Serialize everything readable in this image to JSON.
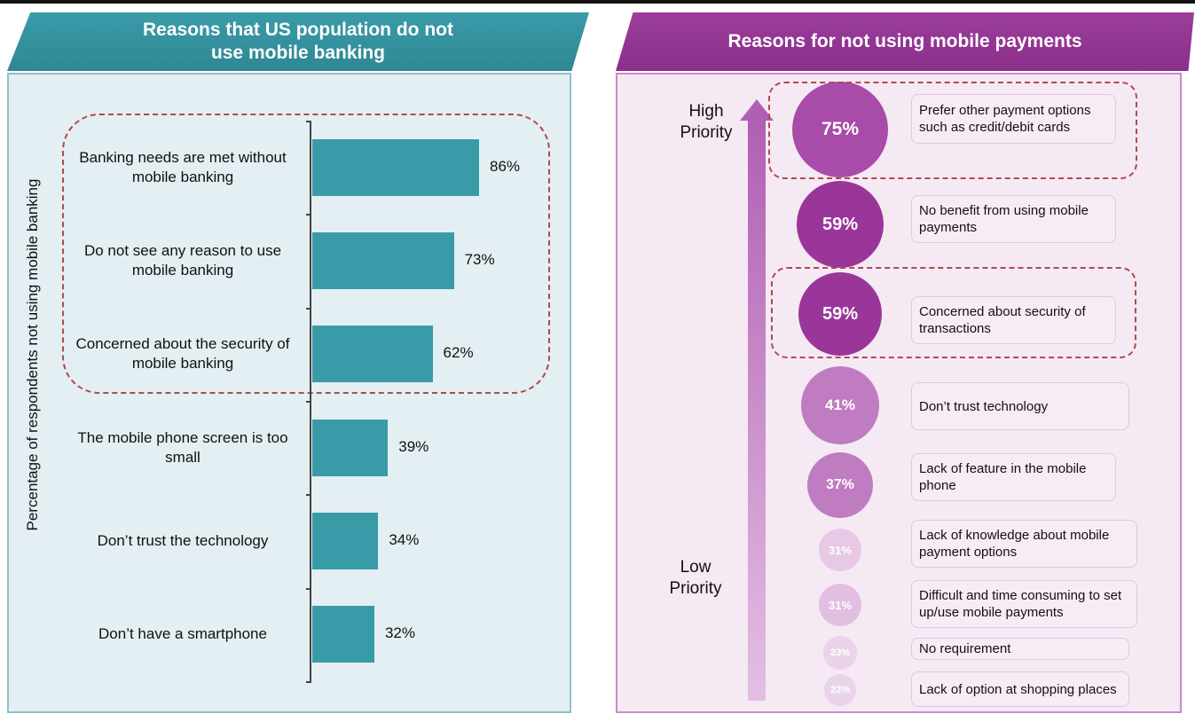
{
  "left": {
    "title": "Reasons that US population do not use mobile banking",
    "ylabel": "Percentage of respondents not using mobile banking"
  },
  "right": {
    "title": "Reasons for not using mobile payments",
    "high_priority": "High Priority",
    "low_priority": "Low Priority"
  },
  "chart_data": [
    {
      "type": "bar",
      "title": "Reasons that US population do not use mobile banking",
      "ylabel": "Percentage of respondents not using mobile banking",
      "categories": [
        "Banking needs are met without mobile banking",
        "Do not see any reason to use mobile banking",
        "Concerned about the security of mobile banking",
        "The mobile phone screen is too small",
        "Don’t trust the technology",
        "Don’t have a smartphone"
      ],
      "values": [
        86,
        73,
        62,
        39,
        34,
        32
      ],
      "value_labels": [
        "86%",
        "73%",
        "62%",
        "39%",
        "34%",
        "32%"
      ],
      "xlim": [
        0,
        100
      ],
      "highlighted_count": 3,
      "bar_color": "#3a9ba8"
    },
    {
      "type": "bubble",
      "title": "Reasons for not using mobile payments",
      "categories": [
        "Prefer other payment options such as credit/debit cards",
        "No benefit from using mobile payments",
        "Concerned about security of transactions",
        "Don’t trust technology",
        "Lack of feature in the mobile phone",
        "Lack of knowledge about mobile payment options",
        "Difficult and time consuming to set up/use mobile payments",
        "No requirement",
        "Lack of option at shopping places"
      ],
      "values": [
        75,
        59,
        59,
        41,
        37,
        31,
        31,
        23,
        23
      ],
      "value_labels": [
        "75%",
        "59%",
        "59%",
        "41%",
        "37%",
        "31%",
        "31%",
        "23%",
        "23%"
      ],
      "highlighted": [
        0,
        2
      ],
      "colors": [
        "#a94ba8",
        "#9a3699",
        "#9a3699",
        "#c07cc0",
        "#c07cc0",
        "#e7c9e6",
        "#e2bfe1",
        "#ead4e9",
        "#ead4e9"
      ]
    }
  ]
}
